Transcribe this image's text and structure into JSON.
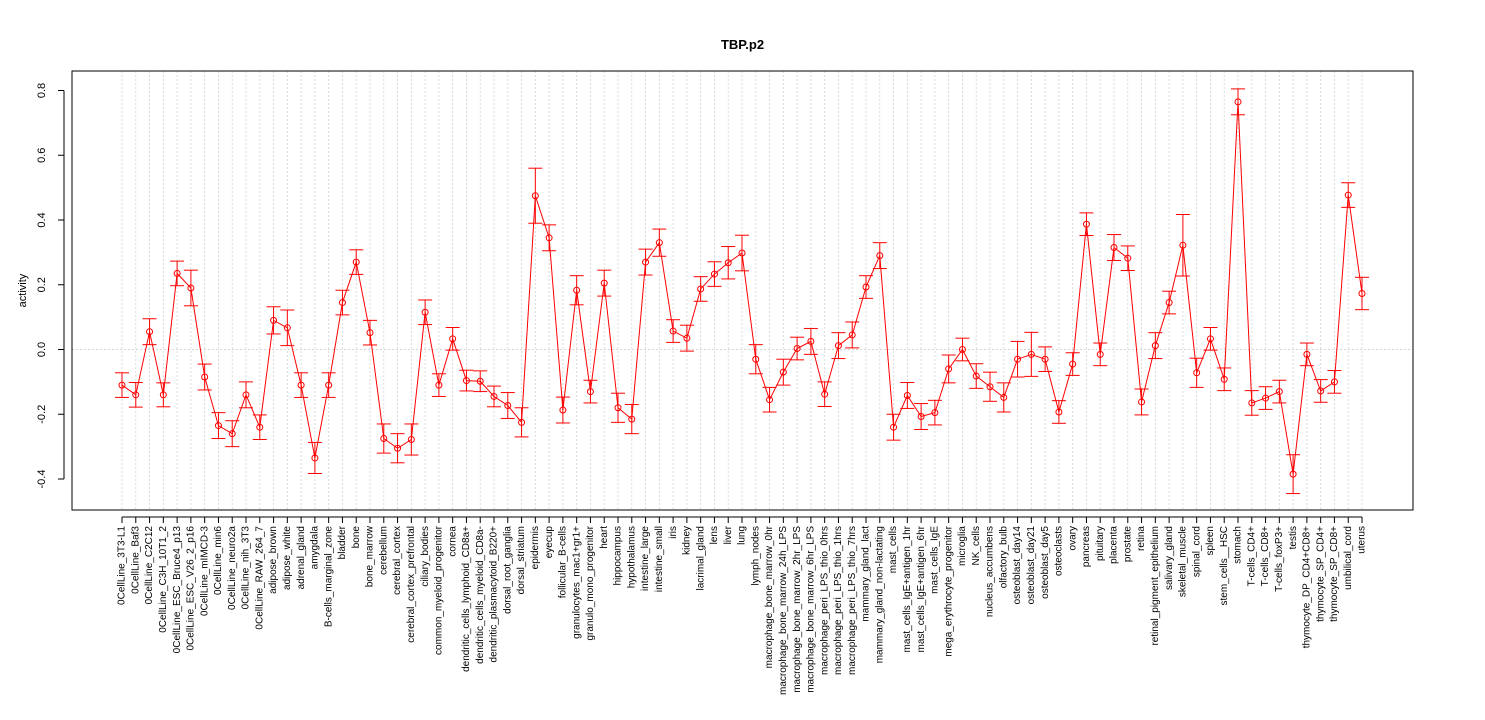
{
  "chart_data": {
    "type": "line",
    "title": "TBP.p2",
    "xlabel": "",
    "ylabel": "activity",
    "ylim": [
      -0.5,
      0.85
    ],
    "yticks": [
      -0.4,
      -0.2,
      0.0,
      0.2,
      0.4,
      0.6,
      0.8
    ],
    "y_tick_labels": [
      "-0.4",
      "-0.2",
      "0.0",
      "0.2",
      "0.4",
      "0.6",
      "0.8"
    ],
    "grid": true,
    "reference_line": 0.0,
    "color": "#ff0000",
    "series": [
      {
        "categories": [
          "0CellLine_3T3-L1",
          "0CellLine_Baf3",
          "0CellLine_C2C12",
          "0CellLine_C3H_10T1_2",
          "0CellLine_ESC_Bruce4_p13",
          "0CellLine_ESC_V26_2_p16",
          "0CellLine_mIMCD-3",
          "0CellLine_min6",
          "0CellLine_neuro2a",
          "0CellLine_nih_3T3",
          "0CellLine_RAW_264_7",
          "adipose_brown",
          "adipose_white",
          "adrenal_gland",
          "amygdala",
          "B-cells_marginal_zone",
          "bladder",
          "bone",
          "bone_marrow",
          "cerebellum",
          "cerebral_cortex",
          "cerebral_cortex_prefrontal",
          "ciliary_bodies",
          "common_myeloid_progenitor",
          "cornea",
          "dendritic_cells_lymphoid_CD8a+",
          "dendritic_cells_myeloid_CD8a-",
          "dendritic_plasmacytoid_B220+",
          "dorsal_root_ganglia",
          "dorsal_striatum",
          "epidermis",
          "eyecup",
          "follicular_B-cells",
          "granulocytes_mac1+gr1+",
          "granulo_mono_progenitor",
          "heart",
          "hippocampus",
          "hypothalamus",
          "intestine_large",
          "intestine_small",
          "iris",
          "kidney",
          "lacrimal_gland",
          "lens",
          "liver",
          "lung",
          "lymph_nodes",
          "macrophage_bone_marrow_0hr",
          "macrophage_bone_marrow_24h_LPS",
          "macrophage_bone_marrow_2hr_LPS",
          "macrophage_bone_marrow_6hr_LPS",
          "macrophage_peri_LPS_thio_0hrs",
          "macrophage_peri_LPS_thio_1hrs",
          "macrophage_peri_LPS_thio_7hrs",
          "mammary_gland_lact",
          "mammary_gland_non-lactating",
          "mast_cells",
          "mast_cells_IgE+antigen_1hr",
          "mast_cells_IgE+antigen_6hr",
          "mast_cells_IgE",
          "mega_erythrocyte_progenitor",
          "microglia",
          "NK_cells",
          "nucleus_accumbens",
          "olfactory_bulb",
          "osteoblast_day14",
          "osteoblast_day21",
          "osteoblast_day5",
          "osteoclasts",
          "ovary",
          "pancreas",
          "pituitary",
          "placenta",
          "prostate",
          "retina",
          "retinal_pigment_epithelium",
          "salivary_gland",
          "skeletal_muscle",
          "spinal_cord",
          "spleen",
          "stem_cells__HSC",
          "stomach",
          "T-cells_CD4+",
          "T-cells_CD8+",
          "T-cells_foxP3+",
          "testis",
          "thymocyte_DP_CD4+CD8+",
          "thymocyte_SP_CD4+",
          "thymocyte_SP_CD8+",
          "umbilical_cord",
          "uterus"
        ],
        "values": [
          -0.11,
          -0.14,
          0.055,
          -0.14,
          0.235,
          0.19,
          -0.085,
          -0.235,
          -0.26,
          -0.14,
          -0.24,
          0.09,
          0.067,
          -0.11,
          -0.335,
          -0.11,
          0.145,
          0.27,
          0.052,
          -0.275,
          -0.305,
          -0.278,
          0.115,
          -0.11,
          0.033,
          -0.096,
          -0.098,
          -0.145,
          -0.173,
          -0.225,
          0.475,
          0.345,
          -0.187,
          0.183,
          -0.13,
          0.205,
          -0.18,
          -0.215,
          0.27,
          0.33,
          0.057,
          0.035,
          0.187,
          0.233,
          0.268,
          0.298,
          -0.03,
          -0.155,
          -0.07,
          0.003,
          0.025,
          -0.138,
          0.012,
          0.045,
          0.193,
          0.29,
          -0.24,
          -0.142,
          -0.207,
          -0.195,
          -0.06,
          0.0,
          -0.082,
          -0.115,
          -0.148,
          -0.03,
          -0.015,
          -0.03,
          -0.193,
          -0.045,
          0.387,
          -0.015,
          0.315,
          0.282,
          -0.162,
          0.012,
          0.145,
          0.322,
          -0.072,
          0.033,
          -0.092,
          0.765,
          -0.165,
          -0.15,
          -0.13,
          -0.385,
          -0.015,
          -0.128,
          -0.1,
          0.477,
          0.173
        ],
        "errors": [
          0.038,
          0.038,
          0.04,
          0.037,
          0.038,
          0.055,
          0.04,
          0.04,
          0.04,
          0.04,
          0.038,
          0.042,
          0.055,
          0.038,
          0.048,
          0.038,
          0.038,
          0.038,
          0.038,
          0.045,
          0.045,
          0.048,
          0.038,
          0.035,
          0.035,
          0.032,
          0.032,
          0.032,
          0.04,
          0.045,
          0.085,
          0.04,
          0.04,
          0.045,
          0.035,
          0.04,
          0.045,
          0.045,
          0.04,
          0.042,
          0.035,
          0.04,
          0.038,
          0.038,
          0.05,
          0.055,
          0.045,
          0.038,
          0.04,
          0.035,
          0.04,
          0.038,
          0.04,
          0.04,
          0.035,
          0.04,
          0.04,
          0.04,
          0.04,
          0.038,
          0.043,
          0.035,
          0.038,
          0.045,
          0.045,
          0.055,
          0.068,
          0.038,
          0.035,
          0.035,
          0.035,
          0.035,
          0.04,
          0.038,
          0.04,
          0.04,
          0.035,
          0.095,
          0.045,
          0.035,
          0.035,
          0.04,
          0.038,
          0.035,
          0.035,
          0.06,
          0.035,
          0.035,
          0.035,
          0.038,
          0.05
        ]
      }
    ]
  }
}
